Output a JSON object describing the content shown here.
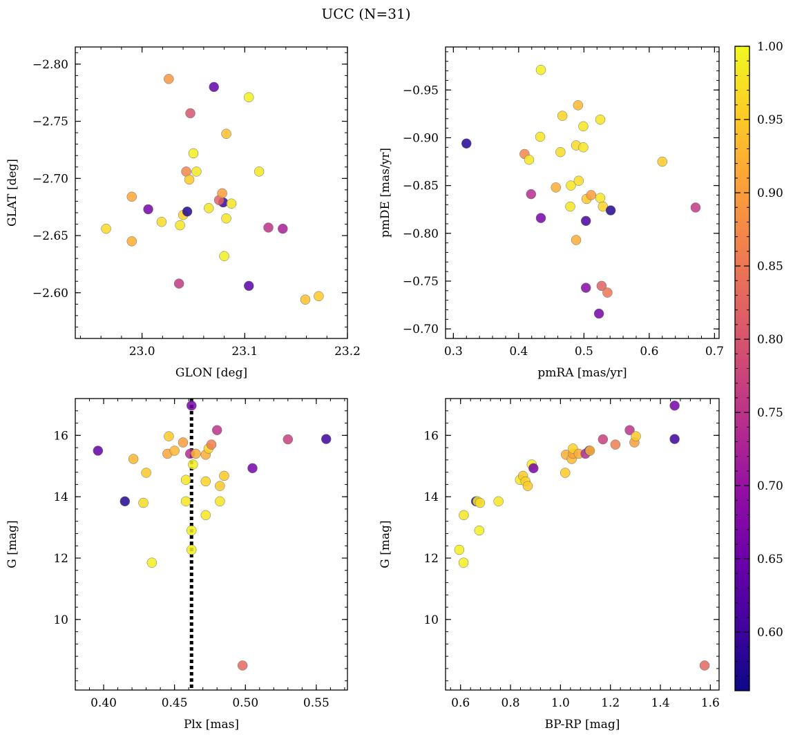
{
  "chart_data": {
    "title": "UCC (N=31)",
    "colorbar": {
      "colormap": "plasma",
      "range": [
        0.56,
        1.0
      ],
      "ticks": [
        0.6,
        0.65,
        0.7,
        0.75,
        0.8,
        0.85,
        0.9,
        0.95,
        1.0
      ],
      "tick_labels": [
        "0.60",
        "0.65",
        "0.70",
        "0.75",
        "0.80",
        "0.85",
        "0.90",
        "0.95",
        "1.00"
      ]
    },
    "panels": [
      {
        "type": "scatter",
        "xlabel": "GLON [deg]",
        "ylabel": "GLAT [deg]",
        "xlim": [
          22.935,
          23.2
        ],
        "ylim": [
          -2.815,
          -2.56
        ],
        "xticks": [
          23.0,
          23.1,
          23.2
        ],
        "xtick_labels": [
          "23.0",
          "23.1",
          "23.2"
        ],
        "yticks": [
          -2.6,
          -2.65,
          -2.7,
          -2.75,
          -2.8
        ],
        "ytick_labels": [
          "−2.60",
          "−2.65",
          "−2.70",
          "−2.75",
          "−2.80"
        ],
        "points": [
          {
            "x": 22.965,
            "y": -2.656,
            "c": 0.97
          },
          {
            "x": 22.99,
            "y": -2.645,
            "c": 0.92
          },
          {
            "x": 22.99,
            "y": -2.684,
            "c": 0.91
          },
          {
            "x": 23.006,
            "y": -2.673,
            "c": 0.66
          },
          {
            "x": 23.019,
            "y": -2.662,
            "c": 0.97
          },
          {
            "x": 23.026,
            "y": -2.787,
            "c": 0.89
          },
          {
            "x": 23.036,
            "y": -2.608,
            "c": 0.76
          },
          {
            "x": 23.037,
            "y": -2.659,
            "c": 0.98
          },
          {
            "x": 23.04,
            "y": -2.668,
            "c": 0.96
          },
          {
            "x": 23.044,
            "y": -2.671,
            "c": 0.58
          },
          {
            "x": 23.043,
            "y": -2.706,
            "c": 0.87
          },
          {
            "x": 23.046,
            "y": -2.699,
            "c": 0.95
          },
          {
            "x": 23.047,
            "y": -2.757,
            "c": 0.8
          },
          {
            "x": 23.05,
            "y": -2.722,
            "c": 0.99
          },
          {
            "x": 23.053,
            "y": -2.706,
            "c": 0.98
          },
          {
            "x": 23.065,
            "y": -2.674,
            "c": 0.98
          },
          {
            "x": 23.07,
            "y": -2.78,
            "c": 0.64
          },
          {
            "x": 23.079,
            "y": -2.679,
            "c": 0.6
          },
          {
            "x": 23.075,
            "y": -2.681,
            "c": 0.82
          },
          {
            "x": 23.078,
            "y": -2.687,
            "c": 0.9
          },
          {
            "x": 23.08,
            "y": -2.632,
            "c": 0.99
          },
          {
            "x": 23.082,
            "y": -2.665,
            "c": 0.98
          },
          {
            "x": 23.082,
            "y": -2.739,
            "c": 0.94
          },
          {
            "x": 23.087,
            "y": -2.678,
            "c": 0.98
          },
          {
            "x": 23.104,
            "y": -2.606,
            "c": 0.63
          },
          {
            "x": 23.104,
            "y": -2.771,
            "c": 0.99
          },
          {
            "x": 23.114,
            "y": -2.706,
            "c": 0.98
          },
          {
            "x": 23.123,
            "y": -2.657,
            "c": 0.75
          },
          {
            "x": 23.137,
            "y": -2.656,
            "c": 0.72
          },
          {
            "x": 23.159,
            "y": -2.594,
            "c": 0.94
          },
          {
            "x": 23.172,
            "y": -2.597,
            "c": 0.95
          }
        ]
      },
      {
        "type": "scatter",
        "xlabel": "pmRA [mas/yr]",
        "ylabel": "pmDE [mas/yr]",
        "xlim": [
          0.288,
          0.707
        ],
        "ylim": [
          -0.995,
          -0.69
        ],
        "xticks": [
          0.3,
          0.4,
          0.5,
          0.6,
          0.7
        ],
        "xtick_labels": [
          "0.3",
          "0.4",
          "0.5",
          "0.6",
          "0.7"
        ],
        "yticks": [
          -0.7,
          -0.75,
          -0.8,
          -0.85,
          -0.9,
          -0.95
        ],
        "ytick_labels": [
          "−0.70",
          "−0.75",
          "−0.80",
          "−0.85",
          "−0.90",
          "−0.95"
        ],
        "points": [
          {
            "x": 0.32,
            "y": -0.894,
            "c": 0.58
          },
          {
            "x": 0.409,
            "y": -0.883,
            "c": 0.87
          },
          {
            "x": 0.416,
            "y": -0.877,
            "c": 0.98
          },
          {
            "x": 0.419,
            "y": -0.841,
            "c": 0.74
          },
          {
            "x": 0.434,
            "y": -0.816,
            "c": 0.66
          },
          {
            "x": 0.433,
            "y": -0.901,
            "c": 0.98
          },
          {
            "x": 0.434,
            "y": -0.971,
            "c": 0.99
          },
          {
            "x": 0.457,
            "y": -0.848,
            "c": 0.92
          },
          {
            "x": 0.464,
            "y": -0.885,
            "c": 0.97
          },
          {
            "x": 0.467,
            "y": -0.923,
            "c": 0.96
          },
          {
            "x": 0.479,
            "y": -0.828,
            "c": 0.98
          },
          {
            "x": 0.48,
            "y": -0.85,
            "c": 0.98
          },
          {
            "x": 0.488,
            "y": -0.793,
            "c": 0.92
          },
          {
            "x": 0.488,
            "y": -0.892,
            "c": 0.97
          },
          {
            "x": 0.491,
            "y": -0.934,
            "c": 0.93
          },
          {
            "x": 0.492,
            "y": -0.855,
            "c": 0.97
          },
          {
            "x": 0.499,
            "y": -0.89,
            "c": 0.98
          },
          {
            "x": 0.499,
            "y": -0.912,
            "c": 0.98
          },
          {
            "x": 0.503,
            "y": -0.743,
            "c": 0.68
          },
          {
            "x": 0.503,
            "y": -0.813,
            "c": 0.61
          },
          {
            "x": 0.504,
            "y": -0.836,
            "c": 0.95
          },
          {
            "x": 0.511,
            "y": -0.84,
            "c": 0.9
          },
          {
            "x": 0.523,
            "y": -0.716,
            "c": 0.66
          },
          {
            "x": 0.525,
            "y": -0.837,
            "c": 0.98
          },
          {
            "x": 0.525,
            "y": -0.919,
            "c": 0.98
          },
          {
            "x": 0.527,
            "y": -0.745,
            "c": 0.82
          },
          {
            "x": 0.529,
            "y": -0.828,
            "c": 0.96
          },
          {
            "x": 0.536,
            "y": -0.738,
            "c": 0.85
          },
          {
            "x": 0.541,
            "y": -0.824,
            "c": 0.58
          },
          {
            "x": 0.62,
            "y": -0.875,
            "c": 0.95
          },
          {
            "x": 0.671,
            "y": -0.827,
            "c": 0.76
          }
        ]
      },
      {
        "type": "scatter",
        "xlabel": "Plx [mas]",
        "ylabel": "G [mag]",
        "xlim": [
          0.38,
          0.572
        ],
        "ylim": [
          17.2,
          7.7
        ],
        "xticks": [
          0.4,
          0.45,
          0.5,
          0.55
        ],
        "xtick_labels": [
          "0.40",
          "0.45",
          "0.50",
          "0.55"
        ],
        "yticks": [
          10,
          12,
          14,
          16
        ],
        "ytick_labels": [
          "10",
          "12",
          "14",
          "16"
        ],
        "vline": {
          "x": 0.462,
          "style": "dotted",
          "color": "#000000"
        },
        "points": [
          {
            "x": 0.396,
            "y": 15.5,
            "c": 0.64
          },
          {
            "x": 0.415,
            "y": 13.85,
            "c": 0.58
          },
          {
            "x": 0.421,
            "y": 15.23,
            "c": 0.93
          },
          {
            "x": 0.428,
            "y": 13.8,
            "c": 0.97
          },
          {
            "x": 0.43,
            "y": 14.78,
            "c": 0.95
          },
          {
            "x": 0.434,
            "y": 11.85,
            "c": 0.99
          },
          {
            "x": 0.445,
            "y": 15.4,
            "c": 0.91
          },
          {
            "x": 0.446,
            "y": 15.97,
            "c": 0.95
          },
          {
            "x": 0.45,
            "y": 15.5,
            "c": 0.93
          },
          {
            "x": 0.456,
            "y": 15.77,
            "c": 0.9
          },
          {
            "x": 0.458,
            "y": 13.85,
            "c": 0.98
          },
          {
            "x": 0.458,
            "y": 14.55,
            "c": 0.98
          },
          {
            "x": 0.461,
            "y": 15.4,
            "c": 0.74
          },
          {
            "x": 0.462,
            "y": 12.27,
            "c": 0.99
          },
          {
            "x": 0.462,
            "y": 12.9,
            "c": 0.99
          },
          {
            "x": 0.462,
            "y": 16.97,
            "c": 0.66
          },
          {
            "x": 0.463,
            "y": 15.05,
            "c": 0.99
          },
          {
            "x": 0.465,
            "y": 15.4,
            "c": 0.92
          },
          {
            "x": 0.472,
            "y": 13.4,
            "c": 0.98
          },
          {
            "x": 0.472,
            "y": 14.5,
            "c": 0.96
          },
          {
            "x": 0.472,
            "y": 15.37,
            "c": 0.92
          },
          {
            "x": 0.474,
            "y": 15.57,
            "c": 0.96
          },
          {
            "x": 0.476,
            "y": 15.7,
            "c": 0.86
          },
          {
            "x": 0.48,
            "y": 16.17,
            "c": 0.75
          },
          {
            "x": 0.482,
            "y": 13.85,
            "c": 0.98
          },
          {
            "x": 0.482,
            "y": 14.35,
            "c": 0.95
          },
          {
            "x": 0.485,
            "y": 14.68,
            "c": 0.95
          },
          {
            "x": 0.498,
            "y": 8.5,
            "c": 0.83
          },
          {
            "x": 0.505,
            "y": 14.93,
            "c": 0.66
          },
          {
            "x": 0.53,
            "y": 15.87,
            "c": 0.77
          },
          {
            "x": 0.557,
            "y": 15.88,
            "c": 0.6
          }
        ]
      },
      {
        "type": "scatter",
        "xlabel": "BP-RP [mag]",
        "ylabel": "G [mag]",
        "xlim": [
          0.54,
          1.635
        ],
        "ylim": [
          17.2,
          7.7
        ],
        "xticks": [
          0.6,
          0.8,
          1.0,
          1.2,
          1.4,
          1.6
        ],
        "xtick_labels": [
          "0.6",
          "0.8",
          "1.0",
          "1.2",
          "1.4",
          "1.6"
        ],
        "yticks": [
          10,
          12,
          14,
          16
        ],
        "ytick_labels": [
          "10",
          "12",
          "14",
          "16"
        ],
        "points": [
          {
            "x": 0.595,
            "y": 12.27,
            "c": 0.99
          },
          {
            "x": 0.612,
            "y": 11.85,
            "c": 0.99
          },
          {
            "x": 0.613,
            "y": 13.4,
            "c": 0.98
          },
          {
            "x": 0.662,
            "y": 13.85,
            "c": 0.58
          },
          {
            "x": 0.668,
            "y": 13.85,
            "c": 0.98
          },
          {
            "x": 0.675,
            "y": 12.9,
            "c": 0.99
          },
          {
            "x": 0.678,
            "y": 13.8,
            "c": 0.97
          },
          {
            "x": 0.752,
            "y": 13.85,
            "c": 0.98
          },
          {
            "x": 0.838,
            "y": 14.55,
            "c": 0.98
          },
          {
            "x": 0.85,
            "y": 14.68,
            "c": 0.95
          },
          {
            "x": 0.86,
            "y": 14.5,
            "c": 0.96
          },
          {
            "x": 0.869,
            "y": 14.35,
            "c": 0.95
          },
          {
            "x": 0.885,
            "y": 15.05,
            "c": 0.99
          },
          {
            "x": 0.892,
            "y": 14.93,
            "c": 0.66
          },
          {
            "x": 1.019,
            "y": 14.78,
            "c": 0.95
          },
          {
            "x": 1.022,
            "y": 15.37,
            "c": 0.92
          },
          {
            "x": 1.045,
            "y": 15.23,
            "c": 0.93
          },
          {
            "x": 1.05,
            "y": 15.4,
            "c": 0.91
          },
          {
            "x": 1.05,
            "y": 15.57,
            "c": 0.96
          },
          {
            "x": 1.073,
            "y": 15.4,
            "c": 0.92
          },
          {
            "x": 1.1,
            "y": 15.4,
            "c": 0.74
          },
          {
            "x": 1.115,
            "y": 15.5,
            "c": 0.64
          },
          {
            "x": 1.118,
            "y": 15.5,
            "c": 0.93
          },
          {
            "x": 1.17,
            "y": 15.87,
            "c": 0.77
          },
          {
            "x": 1.22,
            "y": 15.7,
            "c": 0.86
          },
          {
            "x": 1.277,
            "y": 16.17,
            "c": 0.75
          },
          {
            "x": 1.296,
            "y": 15.77,
            "c": 0.9
          },
          {
            "x": 1.302,
            "y": 15.97,
            "c": 0.95
          },
          {
            "x": 1.457,
            "y": 15.88,
            "c": 0.6
          },
          {
            "x": 1.457,
            "y": 16.97,
            "c": 0.66
          },
          {
            "x": 1.577,
            "y": 8.5,
            "c": 0.83
          }
        ]
      }
    ]
  }
}
